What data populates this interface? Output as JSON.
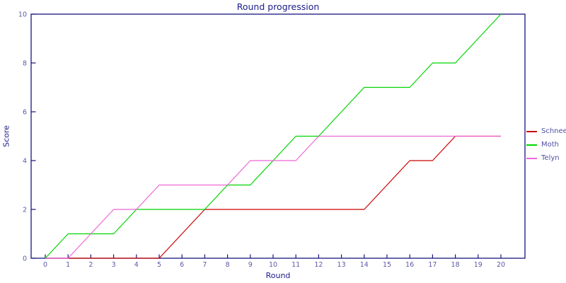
{
  "chart": {
    "title": "Round progression",
    "xlabel": "Round",
    "ylabel": "Score"
  },
  "colors": {
    "axis": "#15157e",
    "title_text": "#1b1b8c",
    "tick_text": "#5a5aa8",
    "legend_text": "#4f4fa5",
    "background": "#ffffff",
    "schnee": "#cc0000",
    "moth": "#00d400",
    "telyn": "#ee66d5"
  },
  "legend": {
    "entries": [
      "Schnee",
      "Moth",
      "Telyn"
    ]
  },
  "chart_data": {
    "type": "line",
    "title": "Round progression",
    "xlabel": "Round",
    "ylabel": "Score",
    "x": [
      0,
      1,
      2,
      3,
      4,
      5,
      6,
      7,
      8,
      9,
      10,
      11,
      12,
      13,
      14,
      15,
      16,
      17,
      18,
      19,
      20
    ],
    "series": [
      {
        "name": "Schnee",
        "color": "#cc0000",
        "values": [
          0,
          0,
          0,
          0,
          0,
          0,
          1,
          2,
          2,
          2,
          2,
          2,
          2,
          2,
          2,
          3,
          4,
          4,
          5,
          5,
          5
        ]
      },
      {
        "name": "Moth",
        "color": "#00d400",
        "values": [
          0,
          1,
          1,
          1,
          2,
          2,
          2,
          2,
          3,
          3,
          4,
          5,
          5,
          6,
          7,
          7,
          7,
          8,
          8,
          9,
          10
        ]
      },
      {
        "name": "Telyn",
        "color": "#ee66d5",
        "values": [
          0,
          0,
          1,
          2,
          2,
          3,
          3,
          3,
          3,
          4,
          4,
          4,
          5,
          5,
          5,
          5,
          5,
          5,
          5,
          5,
          5
        ]
      }
    ],
    "xlim": [
      0,
      20
    ],
    "ylim": [
      0,
      10
    ],
    "x_ticks": [
      0,
      1,
      2,
      3,
      4,
      5,
      6,
      7,
      8,
      9,
      10,
      11,
      12,
      13,
      14,
      15,
      16,
      17,
      18,
      19,
      20
    ],
    "y_ticks": [
      0,
      2,
      4,
      6,
      8,
      10
    ],
    "grid": false,
    "legend_position": "right-outside",
    "markers": false
  }
}
